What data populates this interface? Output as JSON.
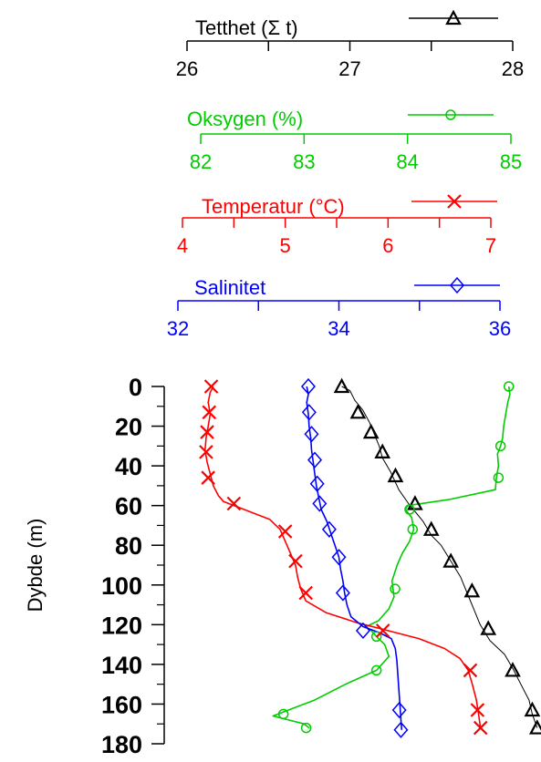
{
  "chart_data": {
    "type": "line",
    "ylabel": "Dybde (m)",
    "ylim": [
      180,
      0
    ],
    "yticks": [
      0,
      20,
      40,
      60,
      80,
      100,
      120,
      140,
      160,
      180
    ],
    "axes": [
      {
        "key": "density",
        "label": "Tetthet (Σ t)",
        "color": "#000000",
        "min": 26,
        "max": 28,
        "ticks": [
          26,
          27,
          28
        ],
        "minor": [
          26.5,
          27.5
        ],
        "marker": "triangle"
      },
      {
        "key": "oxygen",
        "label": "Oksygen (%)",
        "color": "#00cc00",
        "min": 82,
        "max": 85,
        "ticks": [
          82,
          83,
          84,
          85
        ],
        "minor": [],
        "marker": "circle"
      },
      {
        "key": "temperature",
        "label": "Temperatur (°C)",
        "color": "#ff0000",
        "min": 4,
        "max": 7,
        "ticks": [
          4,
          5,
          6,
          7
        ],
        "minor": [
          4.5,
          5.5,
          6.5
        ],
        "marker": "cross"
      },
      {
        "key": "salinity",
        "label": "Salinitet",
        "color": "#0000ff",
        "min": 32,
        "max": 36,
        "ticks": [
          32,
          34,
          36
        ],
        "minor": [
          33,
          35
        ],
        "marker": "diamond"
      }
    ],
    "series": [
      {
        "axis": "density",
        "values": [
          [
            26.95,
            0
          ],
          [
            27.0,
            2
          ],
          [
            27.03,
            7
          ],
          [
            27.08,
            12
          ],
          [
            27.12,
            18
          ],
          [
            27.15,
            24
          ],
          [
            27.18,
            30
          ],
          [
            27.2,
            36
          ],
          [
            27.25,
            43
          ],
          [
            27.3,
            52
          ],
          [
            27.36,
            59
          ],
          [
            27.45,
            68
          ],
          [
            27.5,
            75
          ],
          [
            27.56,
            80
          ],
          [
            27.62,
            88
          ],
          [
            27.68,
            96
          ],
          [
            27.72,
            104
          ],
          [
            27.76,
            112
          ],
          [
            27.8,
            120
          ],
          [
            27.86,
            128
          ],
          [
            27.95,
            135
          ],
          [
            28.0,
            142
          ],
          [
            28.05,
            150
          ],
          [
            28.1,
            158
          ],
          [
            28.12,
            165
          ],
          [
            28.15,
            172
          ]
        ]
      },
      {
        "axis": "oxygen",
        "values": [
          [
            84.98,
            0
          ],
          [
            84.99,
            4
          ],
          [
            84.97,
            8
          ],
          [
            84.95,
            14
          ],
          [
            84.93,
            20
          ],
          [
            84.92,
            26
          ],
          [
            84.9,
            30
          ],
          [
            84.87,
            34
          ],
          [
            84.88,
            40
          ],
          [
            84.86,
            46
          ],
          [
            84.85,
            52
          ],
          [
            84.4,
            57
          ],
          [
            84.0,
            60
          ],
          [
            83.98,
            62
          ],
          [
            84.04,
            66
          ],
          [
            84.06,
            72
          ],
          [
            84.02,
            78
          ],
          [
            83.95,
            84
          ],
          [
            83.9,
            90
          ],
          [
            83.85,
            98
          ],
          [
            83.87,
            106
          ],
          [
            83.82,
            112
          ],
          [
            83.72,
            118
          ],
          [
            83.6,
            121
          ],
          [
            83.65,
            123
          ],
          [
            83.7,
            126
          ],
          [
            83.78,
            130
          ],
          [
            83.82,
            136
          ],
          [
            83.7,
            143
          ],
          [
            83.4,
            150
          ],
          [
            83.1,
            158
          ],
          [
            82.9,
            162
          ],
          [
            82.7,
            166
          ],
          [
            82.85,
            168
          ],
          [
            83.0,
            170
          ],
          [
            83.05,
            172
          ]
        ]
      },
      {
        "axis": "temperature",
        "values": [
          [
            4.3,
            0
          ],
          [
            4.27,
            3
          ],
          [
            4.25,
            8
          ],
          [
            4.27,
            14
          ],
          [
            4.25,
            20
          ],
          [
            4.23,
            26
          ],
          [
            4.22,
            32
          ],
          [
            4.24,
            38
          ],
          [
            4.27,
            44
          ],
          [
            4.3,
            50
          ],
          [
            4.35,
            55
          ],
          [
            4.4,
            58
          ],
          [
            4.55,
            61
          ],
          [
            4.7,
            64
          ],
          [
            4.85,
            67
          ],
          [
            4.95,
            72
          ],
          [
            5.0,
            78
          ],
          [
            5.05,
            84
          ],
          [
            5.1,
            90
          ],
          [
            5.12,
            96
          ],
          [
            5.15,
            102
          ],
          [
            5.2,
            108
          ],
          [
            5.4,
            114
          ],
          [
            5.7,
            119
          ],
          [
            6.0,
            123
          ],
          [
            6.3,
            127
          ],
          [
            6.55,
            132
          ],
          [
            6.7,
            137
          ],
          [
            6.78,
            143
          ],
          [
            6.82,
            150
          ],
          [
            6.86,
            158
          ],
          [
            6.88,
            165
          ],
          [
            6.9,
            172
          ]
        ]
      },
      {
        "axis": "salinity",
        "values": [
          [
            33.6,
            0
          ],
          [
            33.62,
            4
          ],
          [
            33.6,
            8
          ],
          [
            33.62,
            14
          ],
          [
            33.63,
            20
          ],
          [
            33.65,
            26
          ],
          [
            33.66,
            32
          ],
          [
            33.68,
            38
          ],
          [
            33.7,
            44
          ],
          [
            33.72,
            50
          ],
          [
            33.75,
            56
          ],
          [
            33.78,
            62
          ],
          [
            33.85,
            68
          ],
          [
            33.9,
            74
          ],
          [
            33.95,
            80
          ],
          [
            34.0,
            86
          ],
          [
            34.02,
            92
          ],
          [
            34.05,
            98
          ],
          [
            34.07,
            104
          ],
          [
            34.1,
            110
          ],
          [
            34.15,
            116
          ],
          [
            34.3,
            121
          ],
          [
            34.5,
            124
          ],
          [
            34.65,
            127
          ],
          [
            34.7,
            132
          ],
          [
            34.72,
            138
          ],
          [
            34.73,
            144
          ],
          [
            34.74,
            150
          ],
          [
            34.75,
            156
          ],
          [
            34.76,
            162
          ],
          [
            34.77,
            168
          ],
          [
            34.78,
            173
          ]
        ]
      }
    ],
    "markers": [
      {
        "axis": "density",
        "values": [
          [
            26.95,
            0
          ],
          [
            27.05,
            13
          ],
          [
            27.13,
            23
          ],
          [
            27.2,
            33
          ],
          [
            27.28,
            45
          ],
          [
            27.4,
            59
          ],
          [
            27.5,
            72
          ],
          [
            27.62,
            88
          ],
          [
            27.75,
            103
          ],
          [
            27.85,
            122
          ],
          [
            28.0,
            143
          ],
          [
            28.12,
            163
          ],
          [
            28.15,
            172
          ]
        ]
      },
      {
        "axis": "oxygen",
        "values": [
          [
            84.98,
            0
          ],
          [
            84.9,
            30
          ],
          [
            84.88,
            46
          ],
          [
            84.02,
            62
          ],
          [
            84.05,
            72
          ],
          [
            83.88,
            102
          ],
          [
            83.7,
            126
          ],
          [
            83.7,
            143
          ],
          [
            82.8,
            165
          ],
          [
            83.02,
            172
          ]
        ]
      },
      {
        "axis": "temperature",
        "values": [
          [
            4.28,
            0
          ],
          [
            4.26,
            13
          ],
          [
            4.24,
            23
          ],
          [
            4.23,
            33
          ],
          [
            4.25,
            46
          ],
          [
            4.5,
            59
          ],
          [
            5.0,
            73
          ],
          [
            5.1,
            88
          ],
          [
            5.2,
            104
          ],
          [
            5.95,
            123
          ],
          [
            6.8,
            143
          ],
          [
            6.87,
            163
          ],
          [
            6.9,
            172
          ]
        ]
      },
      {
        "axis": "salinity",
        "values": [
          [
            33.62,
            0
          ],
          [
            33.63,
            13
          ],
          [
            33.66,
            24
          ],
          [
            33.7,
            37
          ],
          [
            33.73,
            49
          ],
          [
            33.76,
            59
          ],
          [
            33.88,
            72
          ],
          [
            34.0,
            86
          ],
          [
            34.05,
            104
          ],
          [
            34.3,
            123
          ],
          [
            34.75,
            163
          ],
          [
            34.77,
            173
          ]
        ]
      }
    ]
  }
}
